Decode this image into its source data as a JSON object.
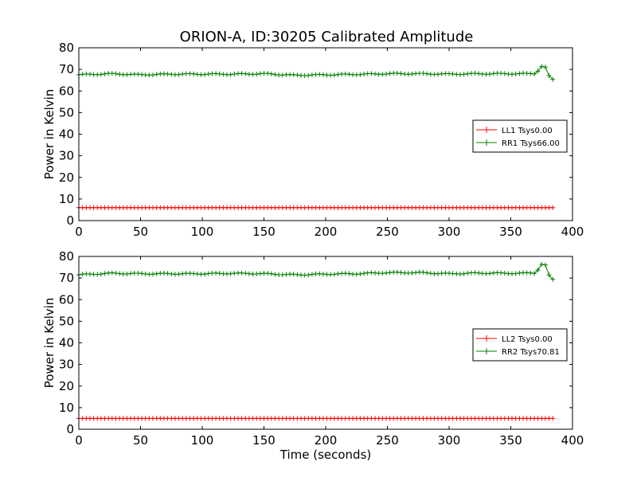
{
  "figure": {
    "title": "ORION-A, ID:30205 Calibrated Amplitude"
  },
  "chart_data": [
    {
      "type": "line",
      "title": "ORION-A, ID:30205 Calibrated Amplitude",
      "xlabel": "",
      "ylabel": "Power in Kelvin",
      "xlim": [
        0,
        400
      ],
      "ylim": [
        0,
        80
      ],
      "xticks": [
        0,
        50,
        100,
        150,
        200,
        250,
        300,
        350,
        400
      ],
      "yticks": [
        0,
        10,
        20,
        30,
        40,
        50,
        60,
        70,
        80
      ],
      "grid": false,
      "legend_position": "center-right",
      "series": [
        {
          "name": "LL1 Tsys0.00",
          "color": "#ff0000",
          "marker": "+",
          "x": [
            0,
            385
          ],
          "y": [
            6.0,
            6.0
          ]
        },
        {
          "name": "RR1 Tsys66.00",
          "color": "#008000",
          "marker": "+",
          "x": [
            0,
            25,
            50,
            75,
            100,
            125,
            150,
            175,
            200,
            225,
            250,
            275,
            300,
            325,
            350,
            370,
            375,
            378,
            382,
            385
          ],
          "y": [
            67.5,
            68.0,
            67.5,
            67.8,
            67.8,
            67.8,
            68.0,
            67.3,
            67.5,
            67.7,
            68.0,
            68.0,
            67.8,
            68.0,
            68.0,
            68.0,
            71.5,
            71.0,
            65.5,
            65.0
          ]
        }
      ]
    },
    {
      "type": "line",
      "title": "",
      "xlabel": "Time (seconds)",
      "ylabel": "Power in Kelvin",
      "xlim": [
        0,
        400
      ],
      "ylim": [
        0,
        80
      ],
      "xticks": [
        0,
        50,
        100,
        150,
        200,
        250,
        300,
        350,
        400
      ],
      "yticks": [
        0,
        10,
        20,
        30,
        40,
        50,
        60,
        70,
        80
      ],
      "grid": false,
      "legend_position": "center-right",
      "series": [
        {
          "name": "LL2 Tsys0.00",
          "color": "#ff0000",
          "marker": "+",
          "x": [
            0,
            385
          ],
          "y": [
            5.0,
            5.0
          ]
        },
        {
          "name": "RR2 Tsys70.81",
          "color": "#008000",
          "marker": "+",
          "x": [
            0,
            25,
            50,
            75,
            100,
            125,
            150,
            175,
            200,
            225,
            250,
            275,
            300,
            325,
            350,
            370,
            375,
            378,
            382,
            385
          ],
          "y": [
            71.5,
            72.2,
            72.0,
            72.0,
            72.0,
            72.2,
            72.0,
            71.5,
            71.8,
            72.0,
            72.5,
            72.5,
            72.0,
            72.3,
            72.2,
            72.3,
            76.5,
            76.0,
            69.5,
            69.0
          ]
        }
      ]
    }
  ]
}
